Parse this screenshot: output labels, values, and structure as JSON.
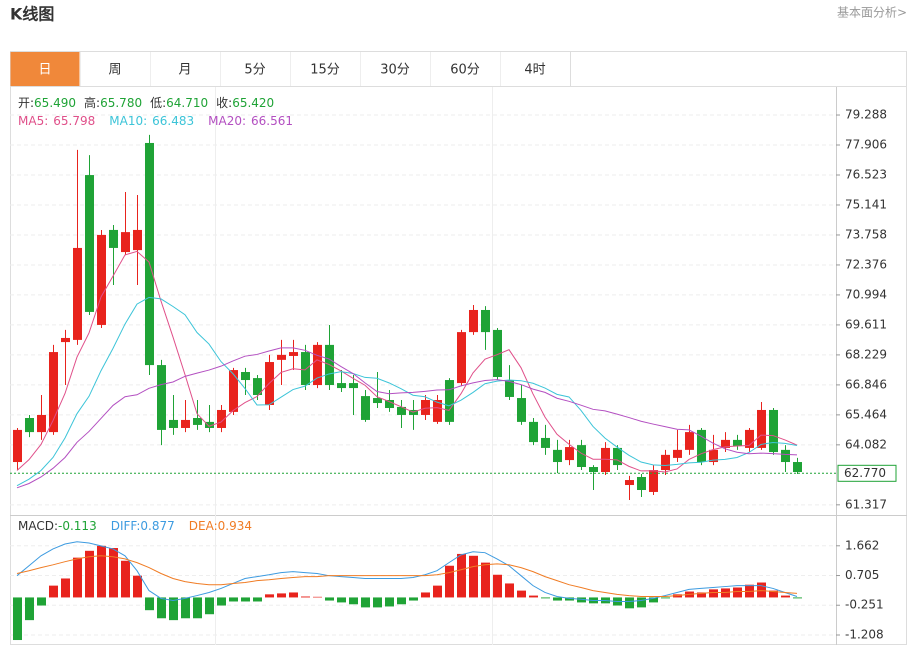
{
  "header": {
    "title": "K线图",
    "link": "基本面分析>"
  },
  "tabs": [
    "日",
    "周",
    "月",
    "5分",
    "15分",
    "30分",
    "60分",
    "4时"
  ],
  "active_tab": 0,
  "chart_data": [
    {
      "type": "candlestick",
      "info": [
        {
          "label": "开:",
          "value": "65.490"
        },
        {
          "label": "高:",
          "value": "65.780"
        },
        {
          "label": "低:",
          "value": "64.710"
        },
        {
          "label": "收:",
          "value": "65.420"
        }
      ],
      "up_color": "#e8231d",
      "down_color": "#1fa336",
      "open": [
        63.29,
        65.32,
        64.67,
        64.67,
        68.82,
        68.92,
        76.52,
        69.61,
        73.99,
        72.97,
        73.06,
        78.0,
        67.76,
        65.23,
        64.86,
        65.32,
        65.14,
        64.86,
        65.6,
        67.44,
        67.16,
        65.92,
        68.0,
        68.18,
        68.36,
        66.84,
        68.69,
        66.93,
        66.93,
        66.33,
        66.24,
        66.15,
        65.83,
        65.69,
        65.46,
        65.14,
        67.07,
        66.93,
        69.28,
        70.3,
        69.38,
        67.07,
        66.24,
        65.14,
        64.4,
        63.85,
        63.38,
        64.07,
        63.06,
        62.83,
        63.94,
        62.23,
        62.6,
        61.91,
        62.92,
        63.48,
        63.85,
        64.77,
        63.29,
        63.94,
        64.31,
        63.94,
        63.94,
        65.69,
        63.85,
        63.29
      ],
      "high": [
        64.86,
        65.46,
        66.38,
        68.69,
        69.38,
        77.68,
        77.44,
        73.99,
        74.22,
        75.74,
        75.6,
        78.37,
        68.0,
        66.38,
        66.15,
        66.15,
        65.92,
        65.92,
        67.63,
        67.63,
        67.3,
        68.23,
        68.92,
        68.92,
        68.69,
        68.82,
        69.61,
        67.53,
        67.3,
        66.61,
        67.44,
        66.61,
        66.15,
        66.15,
        66.38,
        66.38,
        67.16,
        69.38,
        70.53,
        70.48,
        69.47,
        67.76,
        66.84,
        65.32,
        65.0,
        64.31,
        64.31,
        64.31,
        63.15,
        64.21,
        64.07,
        62.65,
        62.74,
        63.15,
        63.85,
        64.77,
        65.0,
        64.86,
        64.54,
        64.67,
        64.54,
        64.86,
        66.06,
        65.78,
        64.07,
        63.48
      ],
      "low": [
        62.92,
        64.44,
        64.31,
        64.54,
        66.84,
        68.69,
        70.07,
        69.47,
        71.45,
        72.83,
        71.45,
        67.3,
        64.07,
        64.54,
        64.67,
        64.77,
        64.67,
        64.67,
        65.46,
        66.38,
        66.15,
        65.69,
        66.84,
        67.53,
        66.61,
        66.7,
        66.61,
        66.52,
        65.46,
        65.14,
        65.78,
        65.6,
        64.86,
        64.77,
        65.23,
        65.05,
        65.0,
        66.79,
        69.15,
        68.46,
        67.07,
        66.15,
        65.0,
        64.07,
        63.62,
        62.78,
        63.15,
        62.92,
        62.0,
        62.69,
        62.92,
        61.54,
        61.68,
        61.77,
        62.69,
        63.29,
        63.62,
        63.15,
        63.15,
        63.75,
        63.85,
        63.75,
        63.85,
        63.62,
        62.83,
        62.74
      ],
      "close": [
        64.77,
        64.67,
        65.46,
        68.36,
        69.01,
        73.16,
        70.21,
        73.76,
        73.16,
        73.89,
        73.99,
        67.76,
        64.77,
        64.86,
        65.23,
        65.0,
        64.86,
        65.69,
        67.53,
        67.07,
        66.38,
        67.9,
        68.23,
        68.36,
        66.84,
        68.69,
        66.84,
        66.7,
        66.7,
        65.23,
        66.01,
        65.78,
        65.46,
        65.46,
        66.15,
        66.15,
        65.14,
        69.28,
        70.3,
        69.28,
        67.21,
        66.29,
        65.14,
        64.21,
        63.94,
        63.29,
        63.98,
        63.06,
        62.83,
        63.94,
        63.15,
        62.46,
        62.0,
        62.92,
        63.62,
        63.85,
        64.67,
        63.29,
        63.85,
        64.31,
        64.03,
        64.77,
        65.69,
        63.75,
        63.29,
        62.83
      ],
      "series": [
        {
          "name": "MA5:",
          "legend_value": "65.798",
          "color": "#e0508a",
          "values": [
            62.9,
            63.4,
            64.1,
            65.2,
            66.45,
            68.13,
            69.24,
            70.9,
            71.86,
            72.84,
            73.0,
            72.51,
            70.71,
            69.05,
            67.32,
            65.52,
            64.94,
            65.13,
            65.66,
            66.03,
            66.31,
            66.91,
            67.42,
            67.59,
            67.54,
            68.0,
            67.79,
            67.49,
            67.15,
            66.83,
            66.3,
            66.08,
            65.84,
            65.59,
            65.77,
            65.8,
            65.67,
            66.44,
            67.4,
            68.03,
            68.24,
            68.47,
            67.64,
            66.43,
            65.36,
            64.57,
            64.11,
            63.7,
            63.42,
            63.42,
            63.39,
            63.09,
            62.88,
            62.89,
            62.83,
            62.97,
            63.41,
            63.67,
            63.86,
            63.99,
            64.03,
            64.05,
            64.53,
            64.51,
            64.31,
            64.07
          ]
        },
        {
          "name": "MA10:",
          "legend_value": "66.483",
          "color": "#3cc4d8",
          "values": [
            62.2,
            62.5,
            62.9,
            63.5,
            64.4,
            65.52,
            66.32,
            67.5,
            68.53,
            69.65,
            70.57,
            70.88,
            70.81,
            70.46,
            70.08,
            69.26,
            68.73,
            67.92,
            67.36,
            66.68,
            65.92,
            65.93,
            66.28,
            66.63,
            66.79,
            67.16,
            67.35,
            67.46,
            67.37,
            67.19,
            67.15,
            66.94,
            66.67,
            66.37,
            66.3,
            66.05,
            65.88,
            66.14,
            66.5,
            66.9,
            67.02,
            67.07,
            67.04,
            66.92,
            66.7,
            66.41,
            66.29,
            65.67,
            64.93,
            64.39,
            63.98,
            63.6,
            63.29,
            63.16,
            63.13,
            63.18,
            63.25,
            63.28,
            63.38,
            63.41,
            63.5,
            63.73,
            64.1,
            64.19,
            64.15,
            64.05
          ]
        },
        {
          "name": "MA20:",
          "legend_value": "66.561",
          "color": "#b34fc1",
          "values": [
            62.1,
            62.3,
            62.6,
            63.0,
            63.5,
            64.2,
            64.7,
            65.3,
            65.9,
            66.3,
            66.39,
            66.69,
            66.86,
            66.98,
            67.24,
            67.39,
            67.53,
            67.71,
            67.95,
            68.17,
            68.25,
            68.41,
            68.55,
            68.55,
            68.44,
            68.21,
            68.04,
            67.69,
            67.37,
            66.94,
            66.54,
            66.44,
            66.48,
            66.5,
            66.55,
            66.61,
            66.62,
            66.8,
            66.94,
            67.05,
            67.09,
            67.01,
            66.86,
            66.65,
            66.5,
            66.23,
            66.09,
            65.91,
            65.72,
            65.65,
            65.5,
            65.34,
            65.17,
            65.04,
            64.92,
            64.8,
            64.77,
            64.48,
            64.16,
            63.9,
            63.74,
            63.67,
            63.7,
            63.68,
            63.64,
            63.62
          ]
        }
      ],
      "ylim": [
        60.94,
        80.58
      ],
      "yticks": [
        79.288,
        77.906,
        76.523,
        75.141,
        73.758,
        72.376,
        70.994,
        69.611,
        68.229,
        66.846,
        65.464,
        64.082,
        61.317
      ],
      "last_price": {
        "value": 62.77,
        "label": "62.770"
      },
      "grid": true
    },
    {
      "type": "macd",
      "series": [
        {
          "name": "MACD:",
          "legend_value": "-0.113",
          "color": "#333333",
          "values": [
            -1.37,
            -0.73,
            -0.26,
            0.38,
            0.61,
            1.28,
            1.5,
            1.66,
            1.59,
            1.18,
            0.7,
            -0.41,
            -0.67,
            -0.73,
            -0.67,
            -0.67,
            -0.54,
            -0.26,
            -0.13,
            -0.13,
            -0.13,
            0.1,
            0.13,
            0.16,
            0.03,
            0.02,
            -0.1,
            -0.16,
            -0.22,
            -0.32,
            -0.32,
            -0.29,
            -0.22,
            -0.1,
            0.16,
            0.38,
            1.02,
            1.4,
            1.34,
            1.12,
            0.73,
            0.45,
            0.22,
            0.06,
            -0.03,
            -0.1,
            -0.1,
            -0.16,
            -0.19,
            -0.19,
            -0.26,
            -0.35,
            -0.32,
            -0.16,
            -0.03,
            0.1,
            0.19,
            0.16,
            0.26,
            0.29,
            0.32,
            0.41,
            0.48,
            0.22,
            0.06,
            -0.03
          ]
        },
        {
          "name": "DIFF:",
          "legend_value": "0.877",
          "color": "#3d9be0",
          "values": [
            0.7,
            1.02,
            1.34,
            1.56,
            1.72,
            1.79,
            1.75,
            1.66,
            1.56,
            1.34,
            0.86,
            0.22,
            -0.03,
            -0.1,
            -0.03,
            0.06,
            0.16,
            0.29,
            0.45,
            0.61,
            0.67,
            0.73,
            0.8,
            0.83,
            0.8,
            0.77,
            0.7,
            0.67,
            0.64,
            0.61,
            0.61,
            0.61,
            0.61,
            0.64,
            0.73,
            0.86,
            1.12,
            1.37,
            1.47,
            1.44,
            1.24,
            1.02,
            0.7,
            0.38,
            0.16,
            0.03,
            -0.03,
            -0.06,
            -0.1,
            -0.1,
            -0.13,
            -0.13,
            -0.1,
            -0.03,
            0.06,
            0.16,
            0.26,
            0.29,
            0.32,
            0.35,
            0.38,
            0.38,
            0.38,
            0.29,
            0.16,
            0.03
          ]
        },
        {
          "name": "DEA:",
          "legend_value": "0.934",
          "color": "#f07c24",
          "values": [
            0.77,
            0.86,
            0.96,
            1.05,
            1.15,
            1.24,
            1.31,
            1.34,
            1.31,
            1.24,
            1.12,
            0.96,
            0.77,
            0.61,
            0.51,
            0.45,
            0.41,
            0.41,
            0.45,
            0.48,
            0.54,
            0.57,
            0.61,
            0.64,
            0.67,
            0.67,
            0.7,
            0.7,
            0.7,
            0.7,
            0.7,
            0.7,
            0.7,
            0.7,
            0.7,
            0.73,
            0.8,
            0.89,
            0.99,
            1.05,
            1.08,
            1.05,
            0.96,
            0.83,
            0.67,
            0.54,
            0.41,
            0.32,
            0.22,
            0.16,
            0.1,
            0.06,
            0.03,
            0.03,
            0.03,
            0.06,
            0.1,
            0.13,
            0.16,
            0.16,
            0.19,
            0.19,
            0.22,
            0.19,
            0.16,
            0.13
          ]
        }
      ],
      "ylim": [
        -1.53,
        2.62
      ],
      "yticks": [
        1.662,
        0.705,
        -0.251,
        -1.208
      ],
      "grid": true
    }
  ]
}
